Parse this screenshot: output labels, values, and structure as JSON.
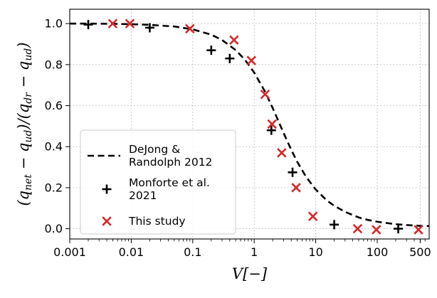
{
  "chart_data": {
    "type": "scatter",
    "xscale": "log",
    "xlabel": "V[−]",
    "ylabel": "(q_net − q_ud)/(q_dr − q_ud)",
    "xlim": [
      0.001,
      700
    ],
    "ylim": [
      -0.05,
      1.07
    ],
    "grid": true,
    "legend_position": "lower-left",
    "x_ticks": [
      {
        "value": 0.001,
        "label": "0.001"
      },
      {
        "value": 0.01,
        "label": "0.01"
      },
      {
        "value": 0.1,
        "label": "0.1"
      },
      {
        "value": 1,
        "label": "1"
      },
      {
        "value": 10,
        "label": "10"
      },
      {
        "value": 100,
        "label": "100"
      },
      {
        "value": 500,
        "label": "500"
      }
    ],
    "y_ticks": [
      {
        "value": 0.0,
        "label": "0.0"
      },
      {
        "value": 0.2,
        "label": "0.2"
      },
      {
        "value": 0.4,
        "label": "0.4"
      },
      {
        "value": 0.6,
        "label": "0.6"
      },
      {
        "value": 0.8,
        "label": "0.8"
      },
      {
        "value": 1.0,
        "label": "1.0"
      }
    ],
    "series": [
      {
        "name": "DeJong & Randolph 2012",
        "legend_lines": [
          "DeJong &",
          "Randolph 2012"
        ],
        "style": "dashed-line",
        "color": "#000000",
        "x": [
          0.001,
          0.002,
          0.005,
          0.01,
          0.02,
          0.05,
          0.1,
          0.2,
          0.3,
          0.5,
          0.7,
          1,
          1.5,
          2,
          3,
          4,
          5,
          7,
          10,
          15,
          20,
          30,
          50,
          70,
          100,
          200,
          300,
          500,
          700
        ],
        "y": [
          1.0,
          1.0,
          0.999,
          0.997,
          0.994,
          0.986,
          0.972,
          0.946,
          0.92,
          0.871,
          0.825,
          0.761,
          0.668,
          0.588,
          0.467,
          0.385,
          0.326,
          0.252,
          0.191,
          0.139,
          0.112,
          0.082,
          0.055,
          0.043,
          0.034,
          0.022,
          0.018,
          0.014,
          0.013
        ]
      },
      {
        "name": "Monforte et al. 2021",
        "legend_lines": [
          "Monforte et al.",
          "2021"
        ],
        "style": "plus-marker",
        "color": "#000000",
        "x": [
          0.002,
          0.02,
          0.2,
          0.4,
          1.9,
          4.2,
          20,
          220
        ],
        "y": [
          0.995,
          0.98,
          0.87,
          0.83,
          0.48,
          0.275,
          0.02,
          0.0
        ]
      },
      {
        "name": "This study",
        "legend_lines": [
          "This study"
        ],
        "style": "x-marker",
        "color": "#d62728",
        "x": [
          0.005,
          0.0095,
          0.09,
          0.47,
          0.9,
          1.5,
          1.95,
          2.8,
          4.8,
          9,
          48,
          97,
          470
        ],
        "y": [
          1.0,
          1.0,
          0.975,
          0.92,
          0.82,
          0.655,
          0.51,
          0.37,
          0.2,
          0.06,
          0.0,
          -0.005,
          -0.005
        ]
      }
    ]
  }
}
